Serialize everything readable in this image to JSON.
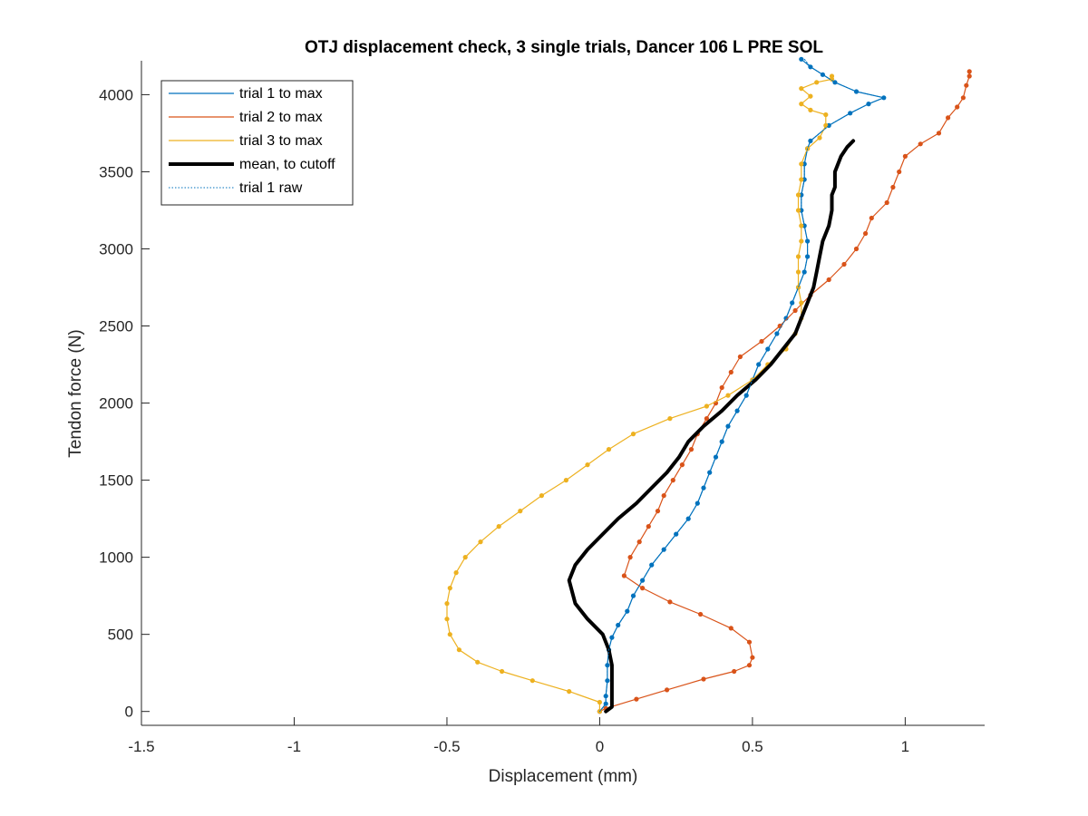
{
  "chart_data": {
    "type": "line",
    "title": "OTJ displacement check, 3 single trials, Dancer 106 L PRE SOL",
    "xlabel": "Displacement (mm)",
    "ylabel": "Tendon force (N)",
    "xlim": [
      -1.5,
      1.26
    ],
    "ylim": [
      -90,
      4220
    ],
    "xticks": [
      -1.5,
      -1,
      -0.5,
      0,
      0.5,
      1
    ],
    "xtick_labels": [
      "-1.5",
      "-1",
      "-0.5",
      "0",
      "0.5",
      "1"
    ],
    "yticks": [
      0,
      500,
      1000,
      1500,
      2000,
      2500,
      3000,
      3500,
      4000
    ],
    "ytick_labels": [
      "0",
      "500",
      "1000",
      "1500",
      "2000",
      "2500",
      "3000",
      "3500",
      "4000"
    ],
    "grid": false,
    "legend_position": "top-left",
    "colors": {
      "trial1": "#0072BD",
      "trial2": "#D95319",
      "trial3": "#EDB120",
      "mean": "#000000",
      "axis": "#262626"
    },
    "series": [
      {
        "name": "trial 1 to max",
        "color": "#0072BD",
        "style": "solid-with-markers",
        "points": [
          [
            0.0,
            0
          ],
          [
            0.02,
            50
          ],
          [
            0.02,
            100
          ],
          [
            0.025,
            200
          ],
          [
            0.025,
            300
          ],
          [
            0.03,
            400
          ],
          [
            0.04,
            480
          ],
          [
            0.06,
            560
          ],
          [
            0.09,
            650
          ],
          [
            0.11,
            750
          ],
          [
            0.14,
            850
          ],
          [
            0.17,
            950
          ],
          [
            0.21,
            1050
          ],
          [
            0.25,
            1150
          ],
          [
            0.29,
            1250
          ],
          [
            0.32,
            1350
          ],
          [
            0.34,
            1450
          ],
          [
            0.36,
            1550
          ],
          [
            0.38,
            1650
          ],
          [
            0.4,
            1750
          ],
          [
            0.42,
            1850
          ],
          [
            0.45,
            1950
          ],
          [
            0.48,
            2050
          ],
          [
            0.5,
            2150
          ],
          [
            0.52,
            2250
          ],
          [
            0.55,
            2350
          ],
          [
            0.58,
            2450
          ],
          [
            0.61,
            2550
          ],
          [
            0.63,
            2650
          ],
          [
            0.65,
            2750
          ],
          [
            0.67,
            2850
          ],
          [
            0.68,
            2950
          ],
          [
            0.68,
            3050
          ],
          [
            0.67,
            3150
          ],
          [
            0.66,
            3250
          ],
          [
            0.66,
            3350
          ],
          [
            0.67,
            3450
          ],
          [
            0.67,
            3550
          ],
          [
            0.68,
            3650
          ],
          [
            0.69,
            3700
          ],
          [
            0.75,
            3800
          ],
          [
            0.82,
            3880
          ],
          [
            0.88,
            3940
          ],
          [
            0.93,
            3980
          ],
          [
            0.84,
            4020
          ],
          [
            0.77,
            4080
          ],
          [
            0.73,
            4130
          ],
          [
            0.69,
            4180
          ],
          [
            0.66,
            4230
          ]
        ]
      },
      {
        "name": "trial 2 to max",
        "color": "#D95319",
        "style": "solid-with-markers",
        "points": [
          [
            0.0,
            0
          ],
          [
            0.02,
            20
          ],
          [
            0.12,
            80
          ],
          [
            0.22,
            140
          ],
          [
            0.34,
            210
          ],
          [
            0.44,
            260
          ],
          [
            0.49,
            300
          ],
          [
            0.5,
            350
          ],
          [
            0.49,
            450
          ],
          [
            0.43,
            540
          ],
          [
            0.33,
            630
          ],
          [
            0.23,
            710
          ],
          [
            0.14,
            800
          ],
          [
            0.08,
            880
          ],
          [
            0.1,
            1000
          ],
          [
            0.13,
            1100
          ],
          [
            0.16,
            1200
          ],
          [
            0.19,
            1300
          ],
          [
            0.21,
            1400
          ],
          [
            0.24,
            1500
          ],
          [
            0.27,
            1600
          ],
          [
            0.3,
            1700
          ],
          [
            0.32,
            1800
          ],
          [
            0.35,
            1900
          ],
          [
            0.38,
            2000
          ],
          [
            0.4,
            2100
          ],
          [
            0.43,
            2200
          ],
          [
            0.46,
            2300
          ],
          [
            0.53,
            2400
          ],
          [
            0.59,
            2500
          ],
          [
            0.64,
            2600
          ],
          [
            0.69,
            2700
          ],
          [
            0.75,
            2800
          ],
          [
            0.8,
            2900
          ],
          [
            0.84,
            3000
          ],
          [
            0.87,
            3100
          ],
          [
            0.89,
            3200
          ],
          [
            0.94,
            3300
          ],
          [
            0.96,
            3400
          ],
          [
            0.98,
            3500
          ],
          [
            1.0,
            3600
          ],
          [
            1.05,
            3680
          ],
          [
            1.11,
            3750
          ],
          [
            1.14,
            3850
          ],
          [
            1.17,
            3920
          ],
          [
            1.19,
            3980
          ],
          [
            1.2,
            4060
          ],
          [
            1.21,
            4120
          ],
          [
            1.21,
            4150
          ]
        ]
      },
      {
        "name": "trial 3 to max",
        "color": "#EDB120",
        "style": "solid-with-markers",
        "points": [
          [
            0.0,
            0
          ],
          [
            0.0,
            60
          ],
          [
            -0.1,
            130
          ],
          [
            -0.22,
            200
          ],
          [
            -0.32,
            260
          ],
          [
            -0.4,
            320
          ],
          [
            -0.46,
            400
          ],
          [
            -0.49,
            500
          ],
          [
            -0.5,
            600
          ],
          [
            -0.5,
            700
          ],
          [
            -0.49,
            800
          ],
          [
            -0.47,
            900
          ],
          [
            -0.44,
            1000
          ],
          [
            -0.39,
            1100
          ],
          [
            -0.33,
            1200
          ],
          [
            -0.26,
            1300
          ],
          [
            -0.19,
            1400
          ],
          [
            -0.11,
            1500
          ],
          [
            -0.04,
            1600
          ],
          [
            0.03,
            1700
          ],
          [
            0.11,
            1800
          ],
          [
            0.23,
            1900
          ],
          [
            0.35,
            1980
          ],
          [
            0.42,
            2050
          ],
          [
            0.5,
            2150
          ],
          [
            0.55,
            2250
          ],
          [
            0.61,
            2350
          ],
          [
            0.64,
            2450
          ],
          [
            0.66,
            2550
          ],
          [
            0.66,
            2650
          ],
          [
            0.65,
            2750
          ],
          [
            0.65,
            2850
          ],
          [
            0.65,
            2950
          ],
          [
            0.66,
            3050
          ],
          [
            0.66,
            3150
          ],
          [
            0.65,
            3250
          ],
          [
            0.65,
            3350
          ],
          [
            0.66,
            3450
          ],
          [
            0.66,
            3550
          ],
          [
            0.68,
            3650
          ],
          [
            0.72,
            3720
          ],
          [
            0.74,
            3800
          ],
          [
            0.74,
            3870
          ],
          [
            0.69,
            3900
          ],
          [
            0.66,
            3940
          ],
          [
            0.69,
            3990
          ],
          [
            0.66,
            4040
          ],
          [
            0.71,
            4080
          ],
          [
            0.76,
            4100
          ],
          [
            0.76,
            4120
          ]
        ]
      },
      {
        "name": "mean, to cutoff",
        "color": "#000000",
        "style": "thick",
        "points": [
          [
            0.02,
            0
          ],
          [
            0.04,
            30
          ],
          [
            0.04,
            100
          ],
          [
            0.04,
            200
          ],
          [
            0.04,
            300
          ],
          [
            0.03,
            400
          ],
          [
            0.01,
            500
          ],
          [
            -0.04,
            600
          ],
          [
            -0.08,
            700
          ],
          [
            -0.1,
            850
          ],
          [
            -0.08,
            950
          ],
          [
            -0.04,
            1050
          ],
          [
            0.01,
            1150
          ],
          [
            0.06,
            1250
          ],
          [
            0.12,
            1350
          ],
          [
            0.17,
            1450
          ],
          [
            0.22,
            1550
          ],
          [
            0.26,
            1650
          ],
          [
            0.29,
            1750
          ],
          [
            0.34,
            1850
          ],
          [
            0.4,
            1950
          ],
          [
            0.45,
            2050
          ],
          [
            0.51,
            2150
          ],
          [
            0.56,
            2250
          ],
          [
            0.6,
            2350
          ],
          [
            0.64,
            2450
          ],
          [
            0.66,
            2550
          ],
          [
            0.68,
            2650
          ],
          [
            0.7,
            2750
          ],
          [
            0.71,
            2850
          ],
          [
            0.72,
            2950
          ],
          [
            0.73,
            3050
          ],
          [
            0.75,
            3150
          ],
          [
            0.76,
            3250
          ],
          [
            0.76,
            3350
          ],
          [
            0.77,
            3400
          ],
          [
            0.77,
            3500
          ],
          [
            0.79,
            3600
          ],
          [
            0.81,
            3660
          ],
          [
            0.83,
            3700
          ]
        ]
      },
      {
        "name": "trial 1 raw",
        "color": "#0072BD",
        "style": "dotted",
        "points": [
          [
            0.0,
            0
          ],
          [
            0.02,
            50
          ],
          [
            0.02,
            100
          ],
          [
            0.025,
            200
          ],
          [
            0.025,
            300
          ],
          [
            0.03,
            400
          ],
          [
            0.04,
            480
          ],
          [
            0.06,
            560
          ],
          [
            0.09,
            650
          ],
          [
            0.11,
            750
          ],
          [
            0.14,
            850
          ],
          [
            0.17,
            950
          ],
          [
            0.21,
            1050
          ],
          [
            0.25,
            1150
          ],
          [
            0.29,
            1250
          ],
          [
            0.32,
            1350
          ],
          [
            0.34,
            1450
          ],
          [
            0.36,
            1550
          ],
          [
            0.38,
            1650
          ],
          [
            0.4,
            1750
          ],
          [
            0.42,
            1850
          ],
          [
            0.45,
            1950
          ],
          [
            0.48,
            2050
          ],
          [
            0.5,
            2150
          ],
          [
            0.52,
            2250
          ],
          [
            0.55,
            2350
          ],
          [
            0.58,
            2450
          ],
          [
            0.61,
            2550
          ],
          [
            0.63,
            2650
          ],
          [
            0.65,
            2750
          ],
          [
            0.67,
            2850
          ],
          [
            0.68,
            2950
          ],
          [
            0.68,
            3050
          ],
          [
            0.67,
            3150
          ],
          [
            0.66,
            3250
          ],
          [
            0.66,
            3350
          ],
          [
            0.67,
            3450
          ],
          [
            0.67,
            3550
          ],
          [
            0.68,
            3650
          ],
          [
            0.69,
            3700
          ],
          [
            0.75,
            3800
          ],
          [
            0.82,
            3880
          ],
          [
            0.88,
            3940
          ],
          [
            0.93,
            3980
          ],
          [
            0.84,
            4020
          ],
          [
            0.77,
            4080
          ],
          [
            0.73,
            4130
          ],
          [
            0.69,
            4180
          ],
          [
            0.67,
            4230
          ]
        ]
      }
    ],
    "legend": [
      {
        "label": "trial 1 to max",
        "color": "#0072BD",
        "style": "solid"
      },
      {
        "label": "trial 2 to max",
        "color": "#D95319",
        "style": "solid"
      },
      {
        "label": "trial 3 to max",
        "color": "#EDB120",
        "style": "solid"
      },
      {
        "label": "mean, to cutoff",
        "color": "#000000",
        "style": "thick"
      },
      {
        "label": "trial 1 raw",
        "color": "#0072BD",
        "style": "dotted"
      }
    ]
  }
}
